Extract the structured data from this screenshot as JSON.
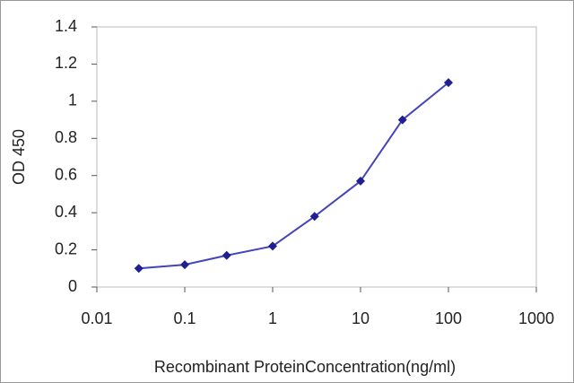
{
  "chart_data": {
    "type": "line",
    "x_label": "Recombinant ProteinConcentration(ng/ml)",
    "y_label": "OD 450",
    "x": [
      0.03,
      0.1,
      0.3,
      1,
      3,
      10,
      30,
      100
    ],
    "series": [
      {
        "color": "#4444bb",
        "marker_color": "#1f1f8f",
        "values": [
          0.1,
          0.12,
          0.17,
          0.22,
          0.38,
          0.57,
          0.9,
          1.1
        ]
      }
    ],
    "xscale": "log",
    "xlim": [
      0.01,
      1000
    ],
    "xticks": [
      0.01,
      0.1,
      1,
      10,
      100,
      1000
    ],
    "ylim": [
      0,
      1.4
    ],
    "yticks": [
      0,
      0.2,
      0.4,
      0.6,
      0.8,
      1,
      1.2,
      1.4
    ],
    "grid": false
  }
}
